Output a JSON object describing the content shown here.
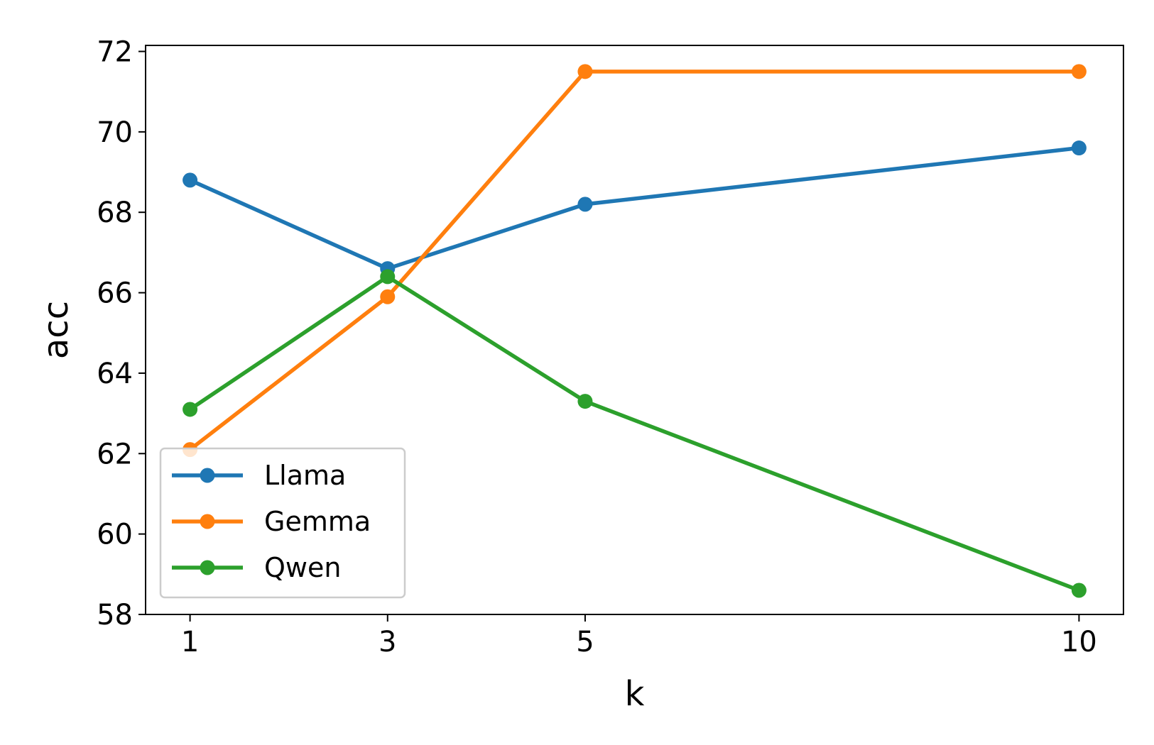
{
  "chart_data": {
    "type": "line",
    "xlabel": "k",
    "ylabel": "acc",
    "x": [
      1,
      3,
      5,
      10
    ],
    "x_ticks": [
      "1",
      "3",
      "5",
      "10"
    ],
    "y_ticks": [
      "58",
      "60",
      "62",
      "64",
      "66",
      "68",
      "70",
      "72"
    ],
    "xlim": [
      0.55,
      10.45
    ],
    "ylim": [
      58.0,
      72.15
    ],
    "grid": false,
    "legend_position": "lower-left",
    "series": [
      {
        "name": "Llama",
        "color": "#1f77b4",
        "values": [
          68.8,
          66.6,
          68.2,
          69.6
        ]
      },
      {
        "name": "Gemma",
        "color": "#ff7f0e",
        "values": [
          62.1,
          65.9,
          71.5,
          71.5
        ]
      },
      {
        "name": "Qwen",
        "color": "#2ca02c",
        "values": [
          63.1,
          66.4,
          63.3,
          58.6
        ]
      }
    ]
  }
}
